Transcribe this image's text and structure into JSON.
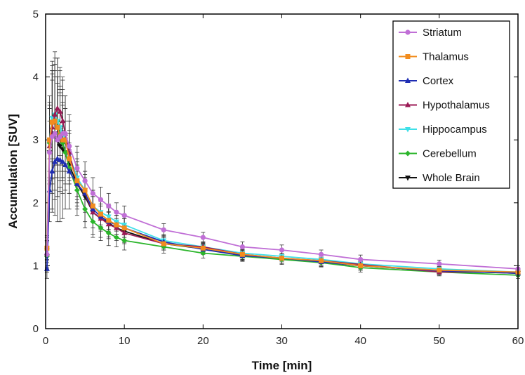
{
  "chart_data": {
    "type": "line",
    "title": "",
    "xlabel": "Time [min]",
    "ylabel": "Accumulation [SUV]",
    "xlim": [
      0,
      60
    ],
    "ylim": [
      0,
      5
    ],
    "xticks": [
      0,
      10,
      20,
      30,
      40,
      50,
      60
    ],
    "yticks": [
      0,
      1,
      2,
      3,
      4,
      5
    ],
    "grid": false,
    "legend_position": "top-right",
    "error_bars": true,
    "x": [
      0.17,
      0.5,
      0.83,
      1.17,
      1.5,
      1.83,
      2.17,
      2.5,
      3,
      4,
      5,
      6,
      7,
      8,
      9,
      10,
      15,
      20,
      25,
      30,
      35,
      40,
      50,
      60
    ],
    "series": [
      {
        "name": "Striatum",
        "color": "#c06fd6",
        "marker": "circle",
        "values": [
          1.18,
          2.8,
          3.05,
          3.1,
          3.0,
          3.05,
          3.1,
          3.1,
          2.9,
          2.55,
          2.35,
          2.15,
          2.05,
          1.95,
          1.85,
          1.8,
          1.57,
          1.45,
          1.3,
          1.25,
          1.18,
          1.1,
          1.03,
          0.95
        ],
        "errors": [
          0.2,
          0.5,
          0.9,
          0.9,
          0.9,
          0.8,
          0.7,
          0.6,
          0.5,
          0.35,
          0.3,
          0.25,
          0.2,
          0.2,
          0.15,
          0.15,
          0.1,
          0.08,
          0.08,
          0.08,
          0.07,
          0.07,
          0.06,
          0.05
        ]
      },
      {
        "name": "Thalamus",
        "color": "#f28c1e",
        "marker": "square",
        "values": [
          1.28,
          3.0,
          3.28,
          3.3,
          3.2,
          3.05,
          3.0,
          3.0,
          2.7,
          2.35,
          2.2,
          1.95,
          1.82,
          1.72,
          1.65,
          1.6,
          1.35,
          1.28,
          1.18,
          1.12,
          1.08,
          1.0,
          0.93,
          0.9
        ],
        "errors": [
          0.2,
          0.6,
          0.9,
          0.9,
          0.8,
          0.7,
          0.6,
          0.5,
          0.4,
          0.3,
          0.3,
          0.25,
          0.2,
          0.2,
          0.15,
          0.15,
          0.1,
          0.08,
          0.08,
          0.08,
          0.07,
          0.07,
          0.06,
          0.05
        ]
      },
      {
        "name": "Cortex",
        "color": "#1f2db3",
        "marker": "triangle-up",
        "values": [
          0.95,
          2.2,
          2.5,
          2.65,
          2.7,
          2.68,
          2.65,
          2.6,
          2.5,
          2.3,
          2.15,
          1.9,
          1.78,
          1.7,
          1.65,
          1.6,
          1.38,
          1.26,
          1.16,
          1.12,
          1.06,
          1.0,
          0.92,
          0.88
        ],
        "errors": [
          0.15,
          0.5,
          0.6,
          0.6,
          0.6,
          0.5,
          0.5,
          0.4,
          0.35,
          0.3,
          0.25,
          0.2,
          0.2,
          0.15,
          0.15,
          0.15,
          0.1,
          0.08,
          0.08,
          0.08,
          0.07,
          0.07,
          0.06,
          0.05
        ]
      },
      {
        "name": "Hypothalamus",
        "color": "#9b1a56",
        "marker": "triangle-up",
        "values": [
          1.2,
          2.9,
          3.2,
          3.4,
          3.5,
          3.45,
          3.3,
          3.1,
          2.8,
          2.3,
          2.15,
          1.85,
          1.75,
          1.66,
          1.6,
          1.52,
          1.35,
          1.3,
          1.18,
          1.12,
          1.08,
          1.02,
          0.9,
          0.9
        ],
        "errors": [
          0.25,
          0.6,
          0.9,
          0.9,
          0.8,
          0.7,
          0.7,
          0.6,
          0.5,
          0.35,
          0.3,
          0.25,
          0.2,
          0.2,
          0.15,
          0.15,
          0.1,
          0.08,
          0.08,
          0.08,
          0.07,
          0.07,
          0.06,
          0.05
        ]
      },
      {
        "name": "Hippocampus",
        "color": "#3ee0e8",
        "marker": "triangle-down",
        "values": [
          1.25,
          3.0,
          3.35,
          3.4,
          3.3,
          3.2,
          3.1,
          3.0,
          2.75,
          2.4,
          2.2,
          1.95,
          1.85,
          1.78,
          1.7,
          1.65,
          1.4,
          1.3,
          1.2,
          1.15,
          1.1,
          1.03,
          0.95,
          0.9
        ],
        "errors": [
          0.2,
          0.5,
          0.7,
          0.7,
          0.7,
          0.6,
          0.6,
          0.5,
          0.4,
          0.3,
          0.3,
          0.25,
          0.2,
          0.2,
          0.15,
          0.15,
          0.1,
          0.08,
          0.08,
          0.08,
          0.07,
          0.07,
          0.06,
          0.05
        ]
      },
      {
        "name": "Cerebellum",
        "color": "#2bb52b",
        "marker": "diamond",
        "values": [
          1.15,
          2.95,
          3.3,
          3.4,
          3.3,
          3.1,
          2.95,
          2.8,
          2.55,
          2.2,
          1.9,
          1.7,
          1.6,
          1.52,
          1.45,
          1.4,
          1.3,
          1.2,
          1.15,
          1.1,
          1.05,
          0.97,
          0.9,
          0.85
        ],
        "errors": [
          0.25,
          0.6,
          0.8,
          0.8,
          0.7,
          0.6,
          0.6,
          0.5,
          0.4,
          0.3,
          0.3,
          0.25,
          0.2,
          0.2,
          0.15,
          0.15,
          0.1,
          0.08,
          0.08,
          0.08,
          0.07,
          0.07,
          0.06,
          0.05
        ]
      },
      {
        "name": "Whole Brain",
        "color": "#111111",
        "marker": "triangle-down",
        "values": [
          1.15,
          2.8,
          3.05,
          3.1,
          3.0,
          2.9,
          2.85,
          2.8,
          2.6,
          2.3,
          2.1,
          1.85,
          1.75,
          1.68,
          1.6,
          1.55,
          1.35,
          1.27,
          1.17,
          1.12,
          1.06,
          1.0,
          0.92,
          0.88
        ],
        "errors": [
          0.25,
          0.9,
          1.2,
          1.3,
          1.3,
          1.2,
          1.1,
          0.9,
          0.7,
          0.5,
          0.4,
          0.35,
          0.3,
          0.25,
          0.2,
          0.2,
          0.1,
          0.08,
          0.08,
          0.08,
          0.07,
          0.07,
          0.06,
          0.05
        ]
      }
    ]
  }
}
